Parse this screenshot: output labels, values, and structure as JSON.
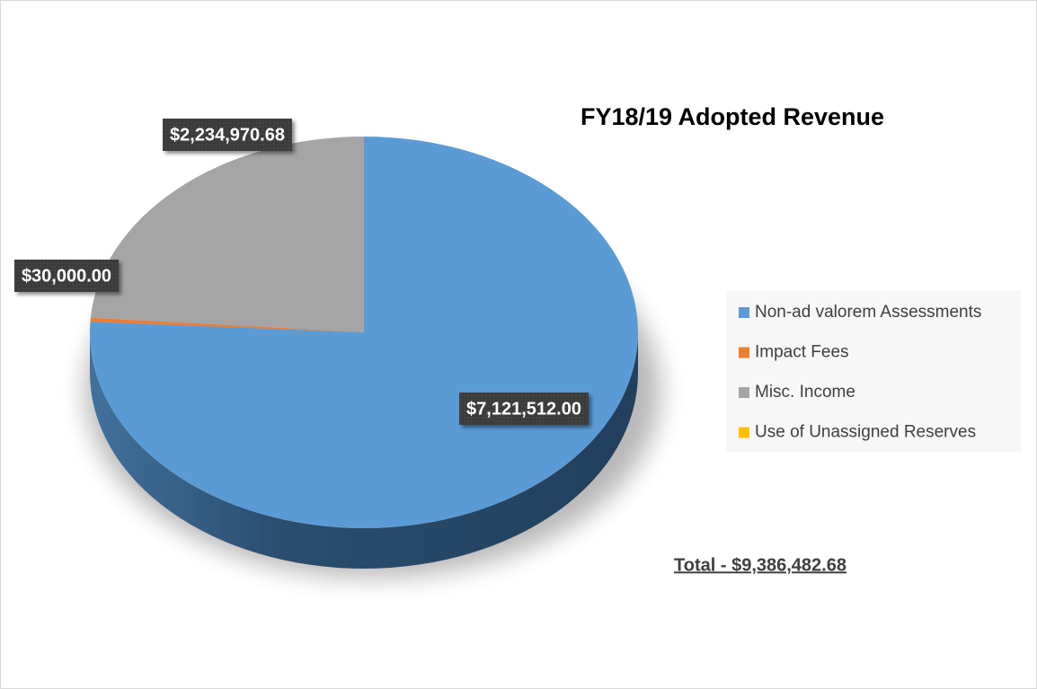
{
  "chart_data": {
    "type": "pie3d",
    "title": "FY18/19 Adopted Revenue",
    "categories": [
      "Non-ad valorem Assessments",
      "Impact Fees",
      "Misc. Income",
      "Use of Unassigned Reserves"
    ],
    "values": [
      7121512.0,
      30000.0,
      2234970.68,
      0
    ],
    "value_labels": [
      "$7,121,512.00",
      "$30,000.00",
      "$2,234,970.68",
      null
    ],
    "colors": [
      "#5b9bd5",
      "#ed7d31",
      "#a5a5a5",
      "#ffc000"
    ],
    "annotation": "Total - $9,386,482.68",
    "legend": "right"
  }
}
